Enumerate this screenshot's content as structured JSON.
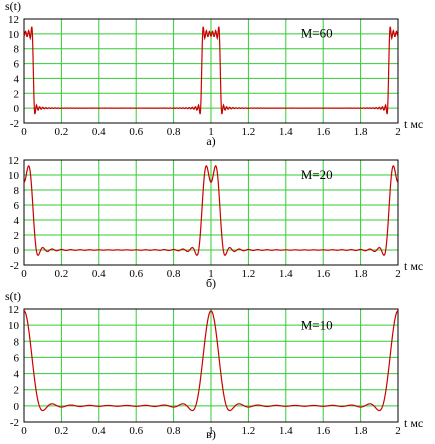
{
  "chart_data": [
    {
      "type": "line",
      "ylabel": "s(t)",
      "xlabel": "t мс",
      "annotation": "M=60",
      "caption": "а)",
      "xlim": [
        0,
        2
      ],
      "ylim": [
        -2,
        12
      ],
      "xticks": [
        "0",
        "0.2",
        "0.4",
        "0.6",
        "0.8",
        "1",
        "1.2",
        "1.4",
        "1.6",
        "1.8",
        "2"
      ],
      "yticks": [
        "-2",
        "0",
        "2",
        "4",
        "6",
        "8",
        "10",
        "12"
      ],
      "grid": true,
      "M": 60,
      "pulse_half_width": 0.05,
      "period": 1,
      "amplitude": 10,
      "colors": {
        "grid": "#33cc33",
        "line": "#cc0000",
        "background": "#ffffff",
        "frame": "#000000"
      }
    },
    {
      "type": "line",
      "ylabel": "",
      "xlabel": "t мс",
      "annotation": "M=20",
      "caption": "б)",
      "xlim": [
        0,
        2
      ],
      "ylim": [
        -2,
        12
      ],
      "xticks": [
        "0",
        "0.2",
        "0.4",
        "0.6",
        "0.8",
        "1",
        "1.2",
        "1.4",
        "1.6",
        "1.8",
        "2"
      ],
      "yticks": [
        "-2",
        "0",
        "2",
        "4",
        "6",
        "8",
        "10",
        "12"
      ],
      "grid": true,
      "M": 20,
      "pulse_half_width": 0.05,
      "period": 1,
      "amplitude": 10,
      "colors": {
        "grid": "#33cc33",
        "line": "#cc0000",
        "background": "#ffffff",
        "frame": "#000000"
      }
    },
    {
      "type": "line",
      "ylabel": "s(t)",
      "xlabel": "t мс",
      "annotation": "M=10",
      "caption": "в)",
      "xlim": [
        0,
        2
      ],
      "ylim": [
        -2,
        12
      ],
      "xticks": [
        "0",
        "0.2",
        "0.4",
        "0.6",
        "0.8",
        "1",
        "1.2",
        "1.4",
        "1.6",
        "1.8",
        "2"
      ],
      "yticks": [
        "-2",
        "0",
        "2",
        "4",
        "6",
        "8",
        "10",
        "12"
      ],
      "grid": true,
      "M": 10,
      "pulse_half_width": 0.05,
      "period": 1,
      "amplitude": 10,
      "colors": {
        "grid": "#33cc33",
        "line": "#cc0000",
        "background": "#ffffff",
        "frame": "#000000"
      }
    }
  ]
}
